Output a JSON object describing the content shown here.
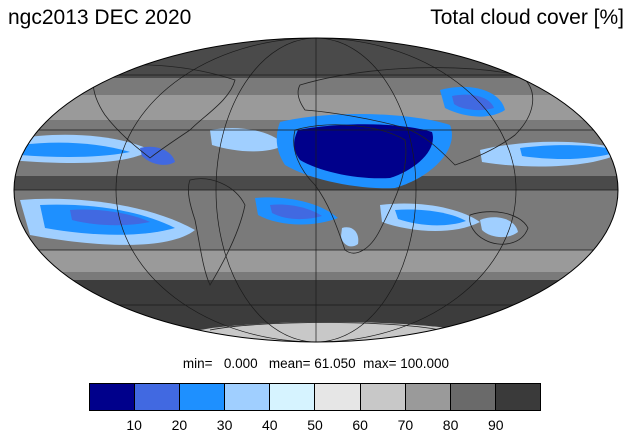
{
  "title_left": "ngc2013 DEC 2020",
  "title_right": "Total cloud cover [%]",
  "stats": {
    "min_label": "min=",
    "min_value": "0.000",
    "mean_label": "mean=",
    "mean_value": "61.050",
    "max_label": "max=",
    "max_value": "100.000"
  },
  "colorbar": {
    "colors": [
      "#00008b",
      "#4169e1",
      "#1e90ff",
      "#a0cfff",
      "#d6f3ff",
      "#e6e6e6",
      "#c8c8c8",
      "#9a9a9a",
      "#6a6a6a",
      "#3a3a3a"
    ],
    "labels": [
      "10",
      "20",
      "30",
      "40",
      "50",
      "60",
      "70",
      "80",
      "90"
    ]
  },
  "map": {
    "projection": "Mollweide",
    "field": "Total cloud cover [%]",
    "colors": {
      "ocean_grey": "#777777",
      "dark": "#3a3a3a",
      "light": "#d0d0d0",
      "pale_blue": "#a0cfff",
      "mid_blue": "#1e90ff",
      "blue": "#4169e1",
      "navy": "#00008b"
    }
  }
}
